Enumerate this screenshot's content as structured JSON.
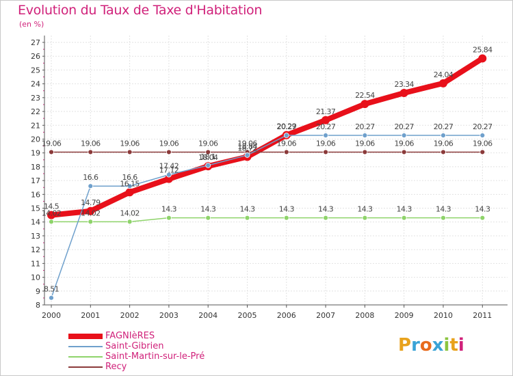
{
  "header": {
    "title": "Evolution du Taux de Taxe d'Habitation",
    "unit": "(en %)"
  },
  "logo": {
    "letters": [
      "P",
      "r",
      "o",
      "x",
      "i",
      "t",
      "i"
    ],
    "colors": [
      "#e8a21c",
      "#3aa3d6",
      "#e86b1c",
      "#3aa3d6",
      "#8bc43f",
      "#e8a21c",
      "#d0217a"
    ]
  },
  "chart_data": {
    "type": "line",
    "title": "Evolution du Taux de Taxe d'Habitation",
    "ylabel": "(en %)",
    "xlabel": "",
    "x": [
      "2000",
      "2001",
      "2002",
      "2003",
      "2004",
      "2005",
      "2006",
      "2007",
      "2008",
      "2009",
      "2010",
      "2011"
    ],
    "ylim": [
      8,
      27
    ],
    "yticks": [
      8,
      9,
      10,
      11,
      12,
      13,
      14,
      15,
      16,
      17,
      18,
      19,
      20,
      21,
      22,
      23,
      24,
      25,
      26,
      27
    ],
    "grid": true,
    "legend_position": "bottom-left",
    "series": [
      {
        "name": "FAGNIèRES",
        "color": "#e8101a",
        "values": [
          14.5,
          14.79,
          16.15,
          17.12,
          18.04,
          18.72,
          20.29,
          21.37,
          22.54,
          23.34,
          24.04,
          25.84
        ],
        "labels": [
          "14.5",
          "14.79",
          "16.15",
          "17.12",
          "18.04",
          "18.72",
          "20.29",
          "21.37",
          "22.54",
          "23.34",
          "24.04",
          "25.84"
        ]
      },
      {
        "name": "Saint-Gibrien",
        "color": "#6fa0cc",
        "values": [
          8.51,
          16.6,
          16.6,
          17.42,
          18.1,
          18.84,
          20.27,
          20.27,
          20.27,
          20.27,
          20.27,
          20.27
        ],
        "labels": [
          "8.51",
          "16.6",
          "16.6",
          "17.42",
          "18.1",
          "18.84",
          "20.27",
          "20.27",
          "20.27",
          "20.27",
          "20.27",
          "20.27"
        ]
      },
      {
        "name": "Saint-Martin-sur-le-Pré",
        "color": "#8ed36a",
        "values": [
          14.02,
          14.02,
          14.02,
          14.3,
          14.3,
          14.3,
          14.3,
          14.3,
          14.3,
          14.3,
          14.3,
          14.3
        ],
        "labels": [
          "14.02",
          "14.02",
          "14.02",
          "14.3",
          "14.3",
          "14.3",
          "14.3",
          "14.3",
          "14.3",
          "14.3",
          "14.3",
          "14.3"
        ]
      },
      {
        "name": "Recy",
        "color": "#8b3a3a",
        "values": [
          19.06,
          19.06,
          19.06,
          19.06,
          19.06,
          19.06,
          19.06,
          19.06,
          19.06,
          19.06,
          19.06,
          19.06
        ],
        "labels": [
          "19.06",
          "19.06",
          "19.06",
          "19.06",
          "19.06",
          "19.06",
          "19.06",
          "19.06",
          "19.06",
          "19.06",
          "19.06",
          "19.06"
        ]
      }
    ]
  }
}
